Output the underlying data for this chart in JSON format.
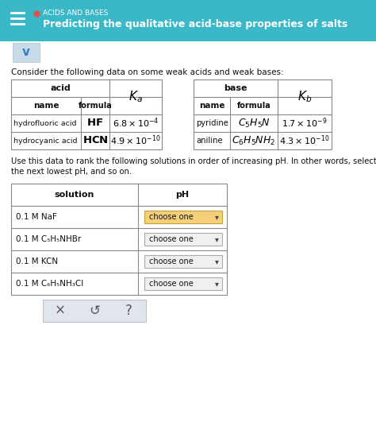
{
  "bg_color": "#ffffff",
  "header_bg": "#3ab8c8",
  "header_text_color": "#ffffff",
  "header_title": "ACIDS AND BASES",
  "header_subtitle": "Predicting the qualitative acid-base properties of salts",
  "intro_text": "Consider the following data on some weak acids and weak bases:",
  "acid_rows": [
    {
      "name": "hydrofluoric acid",
      "formula": "HF",
      "Ka": "6.8 \\times 10^{-4}"
    },
    {
      "name": "hydrocyanic acid",
      "formula": "HCN",
      "Ka": "4.9 \\times 10^{-10}"
    }
  ],
  "base_rows": [
    {
      "name": "pyridine",
      "formula": "C_5H_5N",
      "Kb": "1.7 \\times 10^{-9}"
    },
    {
      "name": "aniline",
      "formula": "C_6H_5NH_2",
      "Kb": "4.3 \\times 10^{-10}"
    }
  ],
  "sol_rows": [
    "0.1 M NaF",
    "0.1 M C₅H₅NHBr",
    "0.1 M KCN",
    "0.1 M C₆H₅NH₃Cl"
  ],
  "choose_highlight": [
    true,
    false,
    false,
    false
  ],
  "bottom_buttons": [
    "×",
    "↺",
    "?"
  ]
}
